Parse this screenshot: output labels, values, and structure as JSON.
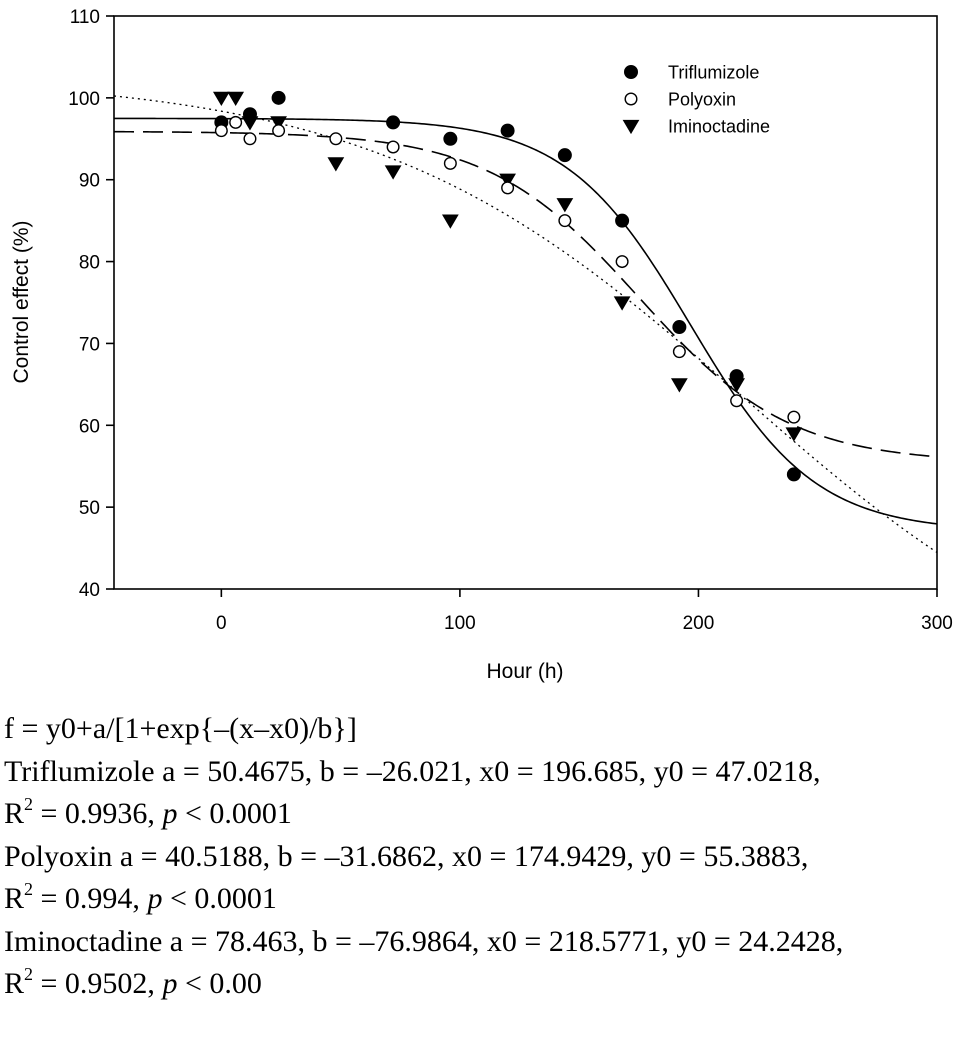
{
  "chart_data": {
    "type": "scatter",
    "xlabel": "Hour (h)",
    "ylabel": "Control effect (%)",
    "xlim": [
      -45,
      300
    ],
    "ylim": [
      40,
      110
    ],
    "xticks": [
      0,
      100,
      200,
      300
    ],
    "yticks": [
      40,
      50,
      60,
      70,
      80,
      90,
      100,
      110
    ],
    "legend_position": "top-right",
    "series": [
      {
        "name": "Triflumizole",
        "marker": "filled-circle",
        "line_style": "solid",
        "x": [
          0,
          12,
          24,
          72,
          96,
          120,
          144,
          168,
          192,
          216,
          240
        ],
        "y": [
          97,
          98,
          100,
          97,
          95,
          96,
          93,
          85,
          72,
          66,
          54
        ],
        "fit": {
          "a": 50.4675,
          "b": -26.021,
          "x0": 196.685,
          "y0": 47.0218
        }
      },
      {
        "name": "Polyoxin",
        "marker": "open-circle",
        "line_style": "dashed",
        "x": [
          0,
          6,
          12,
          24,
          48,
          72,
          96,
          120,
          144,
          168,
          192,
          216,
          240
        ],
        "y": [
          96,
          97,
          95,
          96,
          95,
          94,
          92,
          89,
          85,
          80,
          69,
          63,
          61
        ],
        "fit": {
          "a": 40.5188,
          "b": -31.6862,
          "x0": 174.9429,
          "y0": 55.3883
        }
      },
      {
        "name": "Iminoctadine",
        "marker": "filled-triangle-down",
        "line_style": "dotted",
        "x": [
          0,
          6,
          12,
          24,
          48,
          72,
          96,
          120,
          144,
          168,
          192,
          216,
          240
        ],
        "y": [
          100,
          100,
          97,
          97,
          92,
          91,
          85,
          90,
          87,
          75,
          65,
          65,
          59
        ],
        "fit": {
          "a": 78.463,
          "b": -76.9864,
          "x0": 218.5771,
          "y0": 24.2428
        }
      }
    ]
  },
  "caption": {
    "formula": "f = y0+a/[1+exp{–(x–x0)/b}]",
    "lines": [
      {
        "label": "Triflumizole",
        "params": "a = 50.4675,  b = –26.021,  x0 = 196.685,  y0 = 47.0218,",
        "r2": "= 0.9936,",
        "p": "< 0.0001"
      },
      {
        "label": "Polyoxin",
        "params": "a = 40.5188,  b = –31.6862,  x0 = 174.9429,  y0 = 55.3883,",
        "r2": "= 0.994,",
        "p": "< 0.0001"
      },
      {
        "label": "Iminoctadine",
        "params": "a = 78.463,  b = –76.9864,  x0 = 218.5771,  y0 = 24.2428,",
        "r2": "= 0.9502,",
        "p": "< 0.00"
      }
    ],
    "r_symbol": "R",
    "r_exp": "2",
    "p_symbol": "p"
  }
}
